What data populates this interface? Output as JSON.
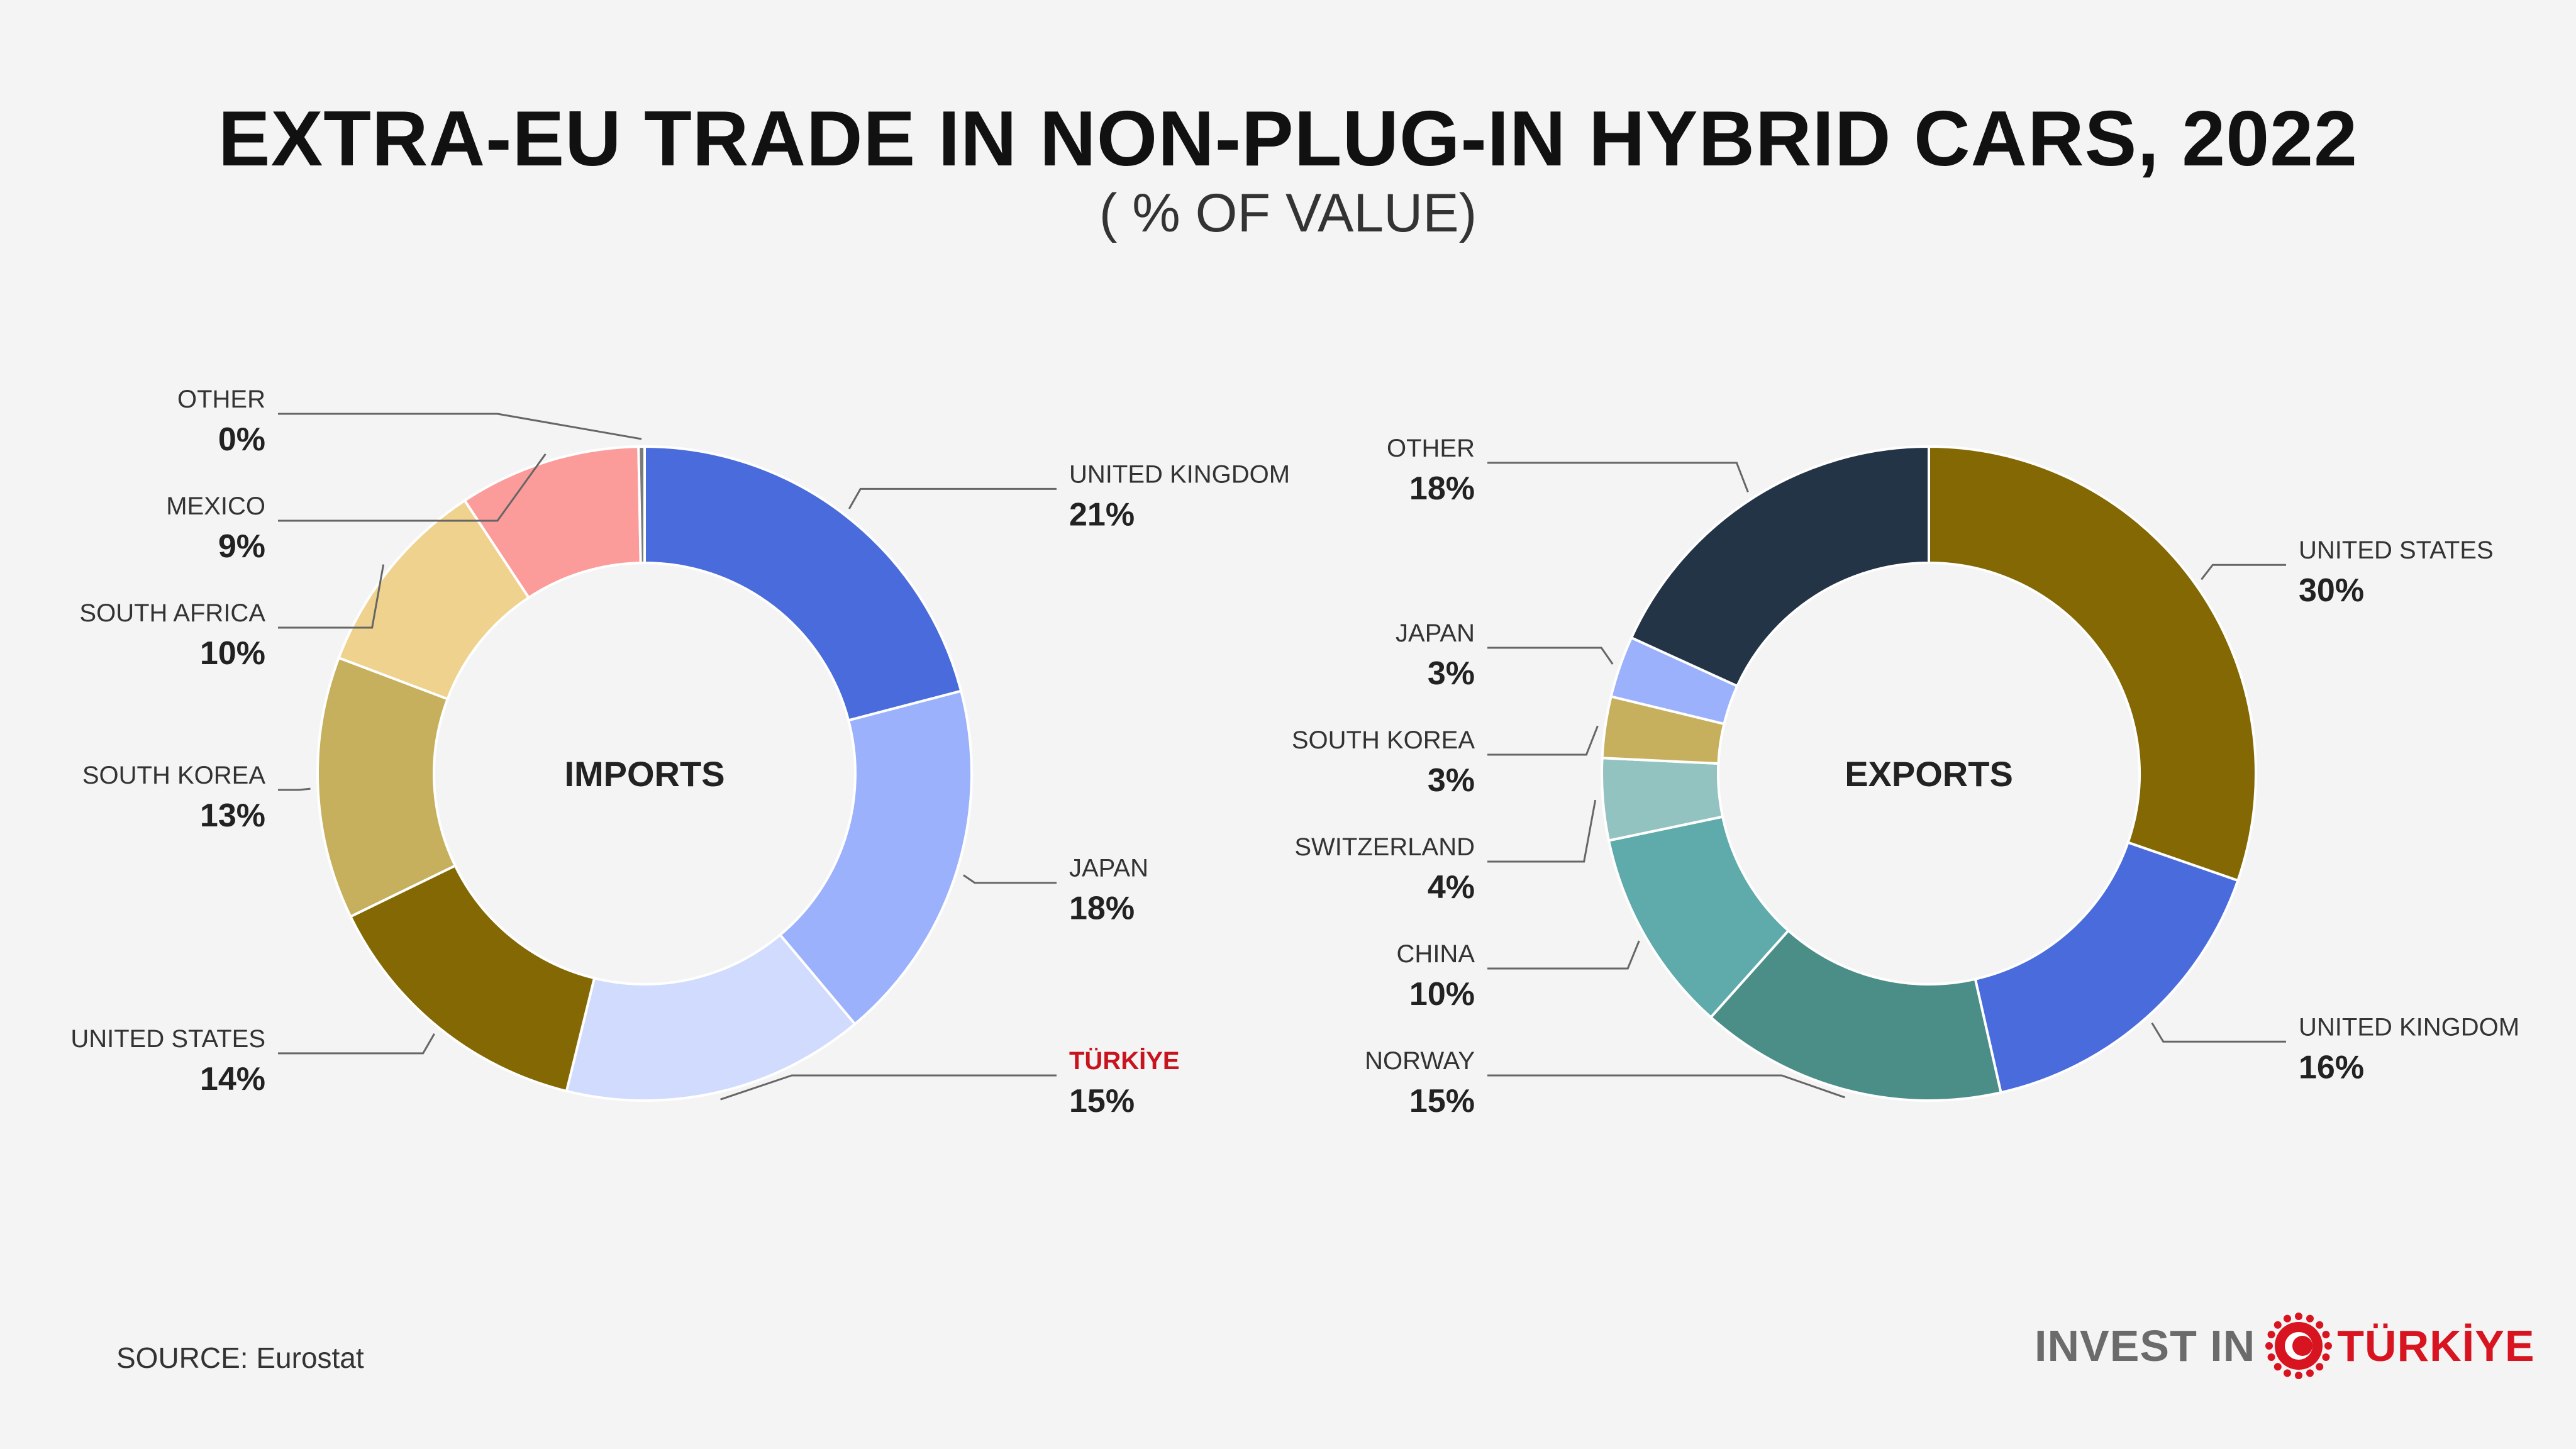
{
  "header": {
    "title": "EXTRA-EU TRADE IN NON-PLUG-IN HYBRID CARS, 2022",
    "subtitle": "( % OF VALUE)"
  },
  "footer": {
    "source": "SOURCE: Eurostat",
    "logo_invest": "INVEST IN",
    "logo_country": "TÜRKİYE"
  },
  "highlight_color": "#c8141e",
  "chart_data": [
    {
      "type": "donut",
      "center_label": "IMPORTS",
      "slices": [
        {
          "label": "UNITED KINGDOM",
          "value": 21,
          "value_text": "21%",
          "color": "#4a6bdb"
        },
        {
          "label": "JAPAN",
          "value": 18,
          "value_text": "18%",
          "color": "#9bb1fb"
        },
        {
          "label": "TÜRKİYE",
          "value": 15,
          "value_text": "15%",
          "color": "#d0dbfd",
          "highlight": true
        },
        {
          "label": "UNITED STATES",
          "value": 14,
          "value_text": "14%",
          "color": "#836804"
        },
        {
          "label": "SOUTH KOREA",
          "value": 13,
          "value_text": "13%",
          "color": "#c6b05d"
        },
        {
          "label": "SOUTH AFRICA",
          "value": 10,
          "value_text": "10%",
          "color": "#eed28e"
        },
        {
          "label": "MEXICO",
          "value": 9,
          "value_text": "9%",
          "color": "#fb9c9b"
        },
        {
          "label": "OTHER",
          "value": 0.3,
          "value_text": "0%",
          "color": "#7a7a7a"
        }
      ]
    },
    {
      "type": "donut",
      "center_label": "EXPORTS",
      "slices": [
        {
          "label": "UNITED STATES",
          "value": 30,
          "value_text": "30%",
          "color": "#836804"
        },
        {
          "label": "UNITED KINGDOM",
          "value": 16,
          "value_text": "16%",
          "color": "#4a6bdb"
        },
        {
          "label": "NORWAY",
          "value": 15,
          "value_text": "15%",
          "color": "#4b8d87"
        },
        {
          "label": "CHINA",
          "value": 10,
          "value_text": "10%",
          "color": "#5faaaa"
        },
        {
          "label": "SWITZERLAND",
          "value": 4,
          "value_text": "4%",
          "color": "#93c3c0"
        },
        {
          "label": "SOUTH KOREA",
          "value": 3,
          "value_text": "3%",
          "color": "#c6b05d"
        },
        {
          "label": "JAPAN",
          "value": 3,
          "value_text": "3%",
          "color": "#9bb1fb"
        },
        {
          "label": "OTHER",
          "value": 18,
          "value_text": "18%",
          "color": "#243447"
        }
      ]
    }
  ]
}
